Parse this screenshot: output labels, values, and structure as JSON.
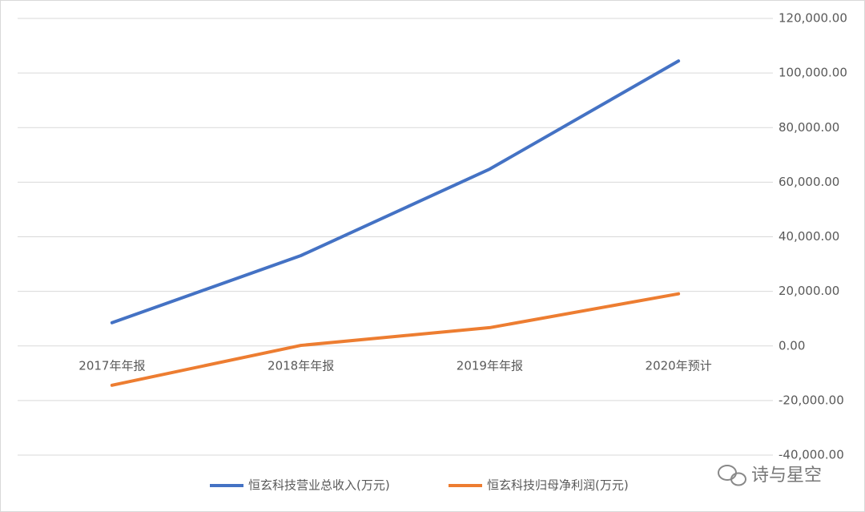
{
  "chart_data": {
    "type": "line",
    "categories": [
      "2017年年报",
      "2018年年报",
      "2019年年报",
      "2020年预计"
    ],
    "series": [
      {
        "name": "恒玄科技营业总收入(万元)",
        "color": "#4472c4",
        "values": [
          8500,
          33100,
          64800,
          104400
        ]
      },
      {
        "name": "恒玄科技归母净利润(万元)",
        "color": "#ed7d31",
        "values": [
          -14400,
          200,
          6700,
          19100
        ]
      }
    ],
    "ylim": [
      -40000,
      120000
    ],
    "yticks": [
      {
        "value": -40000,
        "label": "-40,000.00"
      },
      {
        "value": -20000,
        "label": "-20,000.00"
      },
      {
        "value": 0,
        "label": "0.00"
      },
      {
        "value": 20000,
        "label": "20,000.00"
      },
      {
        "value": 40000,
        "label": "40,000.00"
      },
      {
        "value": 60000,
        "label": "60,000.00"
      },
      {
        "value": 80000,
        "label": "80,000.00"
      },
      {
        "value": 100000,
        "label": "100,000.00"
      },
      {
        "value": 120000,
        "label": "120,000.00"
      }
    ],
    "grid": true,
    "legend": "bottom"
  },
  "watermark": "诗与星空"
}
